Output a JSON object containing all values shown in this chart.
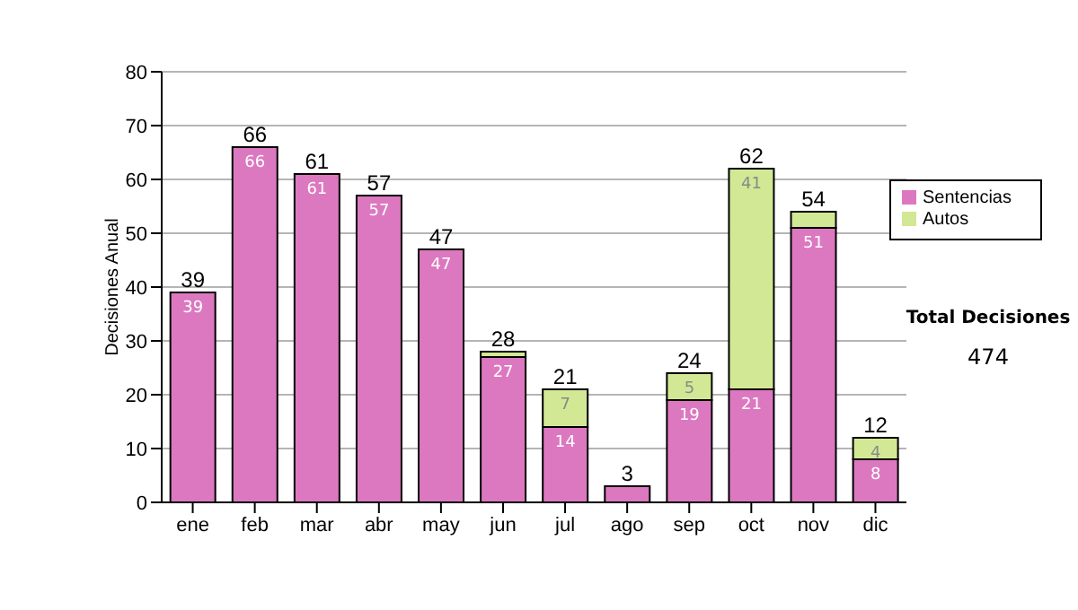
{
  "chart_data": {
    "type": "bar",
    "stacked": true,
    "ylabel": "Decisiones Anual",
    "categories": [
      "ene",
      "feb",
      "mar",
      "abr",
      "may",
      "jun",
      "jul",
      "ago",
      "sep",
      "oct",
      "nov",
      "dic"
    ],
    "series": [
      {
        "name": "Sentencias",
        "color": "#dc78c0",
        "values": [
          39,
          66,
          61,
          57,
          47,
          27,
          14,
          3,
          19,
          21,
          51,
          8
        ],
        "value_labels": [
          "39",
          "66",
          "61",
          "57",
          "47",
          "27",
          "14",
          null,
          "19",
          "21",
          "51",
          "8"
        ]
      },
      {
        "name": "Autos",
        "color": "#d2e895",
        "values": [
          0,
          0,
          0,
          0,
          0,
          1,
          7,
          0,
          5,
          41,
          3,
          4
        ],
        "value_labels": [
          null,
          null,
          null,
          null,
          null,
          null,
          "7",
          null,
          "5",
          "41",
          null,
          "4"
        ]
      }
    ],
    "totals": [
      "39",
      "66",
      "61",
      "57",
      "47",
      "28",
      "21",
      "3",
      "24",
      "62",
      "54",
      "12"
    ],
    "ylim": [
      0,
      80
    ],
    "yticks": [
      0,
      10,
      20,
      30,
      40,
      50,
      60,
      70,
      80
    ],
    "grid": "y",
    "legend": "right",
    "annotations": [
      "Total Decisiones",
      "474"
    ]
  }
}
